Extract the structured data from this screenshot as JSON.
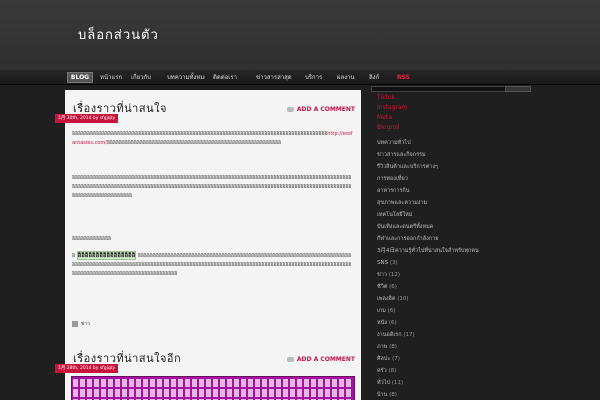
{
  "site": {
    "title": "บล็อกส่วนตัว"
  },
  "nav": {
    "items": [
      {
        "label": "BLOG",
        "active": true
      },
      {
        "label": "หน้าแรก"
      },
      {
        "label": "เกี่ยวกับ"
      },
      {
        "label": "บทความทั้งหมด"
      },
      {
        "label": "ติดต่อเรา"
      },
      {
        "label": "ข่าวสารล่าสุด"
      },
      {
        "label": "บริการ"
      },
      {
        "label": "ผลงาน"
      },
      {
        "label": "ลิงก์"
      },
      {
        "label": "RSS",
        "rss": true
      }
    ]
  },
  "posts": [
    {
      "title": "เรื่องราวที่น่าสนใจ",
      "comment_label": "ADD A COMMENT",
      "date": "1月 30th, 2014 by sfgjqty",
      "para1": "อิอิอิอิอิอิอิอิอิอิอิอิอิอิอิอิอิอิอิอิอิอิอิอิอิอิอิอิอิอิอิอิอิอิอิอิอิอิอิอิอิอิอิอิอิอิอิอิอิอิอิอิอิอิอิอิอิอิอิอิอิอิอิอิอิอิอิอิอิอิอิอิอิอิอิอิอิอิอิอิอิอิอิอิอิ",
      "link": "http://erofantasies.com/",
      "para1_tail": "อิอิอิอิอิอิอิอิอิอิอิอิอิอิอิอิอิอิอิอิอิอิอิอิอิอิอิอิอิอิอิอิอิอิอิอิอิอิอิอิอิอิอิอิอิอิอิอิอิอิอิอิอิอิอิอิอิอิ",
      "para2": "อิอิอิอิอิอิอิอิอิอิอิอิอิอิอิอิอิอิอิอิอิอิอิอิอิอิอิอิอิอิอิอิอิอิอิอิอิอิอิอิอิอิอิอิอิอิอิอิอิอิอิอิอิอิอิอิอิอิอิอิอิอิอิอิอิอิอิอิอิอิอิอิอิอิอิอิอิอิอิอิอิอิอิอิอิอิอิอิอิอิอิอิอิอิอิอิอิอิอิอิอิอิอิอิอิอิอิอิอิอิอิอิอิอิอิอิอิอิอิอิอิอิอิอิอิอิอิอิอิอิอิอิอิอิอิอิอิอิอิอิอิอิอิอิอิอิอิอิอิอิอิอิอิอิอิอิอิอิอิอิอิอิอิอิอิอิอิอิอิอิอิอิอิอิอิอิอิอิอิอิอิอิอิอิอิอิอิอิอิอิอิอิอิอิอิอิอิอิอิอิอิอิอิอิอิอิ",
      "subhead": "อิอิอิอิอิอิอิอิอิอิอิอิอิ",
      "highlight": "อิอิอิอิอิอิอิอิอิอิอิอิอิอิอิอิ",
      "para3": "อิอิอิอิอิอิอิอิอิอิอิอิอิอิอิอิอิอิอิอิอิอิอิอิอิอิอิอิอิอิอิอิอิอิอิอิอิอิอิอิอิอิอิอิอิอิอิอิอิอิอิอิอิอิอิอิอิอิอิอิอิอิอิอิอิอิอิอิอิอิอิอิอิอิอิอิอิอิอิอิอิอิอิอิอิอิอิอิอิอิอิอิอิอิอิอิอิอิอิอิอิอิอิอิอิอิอิอิอิอิอิอิอิอิอิอิอิอิอิอิอิอิอิอิอิอิอิอิอิอิอิอิอิอิอิอิอิอิอิอิอิอิอิอิอิอิอิอิอิอิอิอิอิอิอิอิอิอิอิอิอิอิอิอิอิอิอิอิอิอิอิอิอิอิอิอิอิอิอิอิอิอิอิอิอิอิอิอิอิอิอิอิอิอิอิอิอิอิอิ",
      "tag": "ข่าว"
    },
    {
      "title": "เรื่องราวที่น่าสนใจอีก",
      "comment_label": "ADD A COMMENT",
      "date": "1月 28th, 2014 by sfgjqty"
    }
  ],
  "sidebar": {
    "links": [
      "Tiktok",
      "Instagram",
      "Meta",
      "Blogroll"
    ],
    "categories": [
      {
        "label": "บทความทั่วไป",
        "count": ""
      },
      {
        "label": "ข่าวสารและกิจกรรม",
        "count": ""
      },
      {
        "label": "รีวิวสินค้าและบริการต่างๆ",
        "count": ""
      },
      {
        "label": "การท่องเที่ยว",
        "count": ""
      },
      {
        "label": "อาหารการกิน",
        "count": ""
      },
      {
        "label": "สุขภาพและความงาม",
        "count": ""
      },
      {
        "label": "เทคโนโลยีใหม่",
        "count": ""
      },
      {
        "label": "บันเทิงและดนตรีทั้งหมด",
        "count": ""
      },
      {
        "label": "กีฬาและการออกกำลังกาย",
        "count": ""
      },
      {
        "label": "3月4日ความรู้ทั่วไปที่น่าสนใจสำหรับทุกคน",
        "count": ""
      },
      {
        "label": "SNS",
        "count": "(3)"
      },
      {
        "label": "ข่าว",
        "count": "(12)"
      },
      {
        "label": "ชีวิต",
        "count": "(6)"
      },
      {
        "label": "เพลงฮิต",
        "count": "(10)"
      },
      {
        "label": "เกม",
        "count": "(6)"
      },
      {
        "label": "หนัง",
        "count": "(6)"
      },
      {
        "label": "งานอดิเรก",
        "count": "(17)"
      },
      {
        "label": "ภาพ",
        "count": "(8)"
      },
      {
        "label": "ศิลปะ",
        "count": "(7)"
      },
      {
        "label": "ครัว",
        "count": "(8)"
      },
      {
        "label": "ทั่วไป",
        "count": "(11)"
      },
      {
        "label": "บ้าน",
        "count": "(8)"
      }
    ]
  },
  "colors": {
    "accent": "#c8143c",
    "background": "#1f1f1f",
    "content_bg": "#f4f4f4"
  }
}
